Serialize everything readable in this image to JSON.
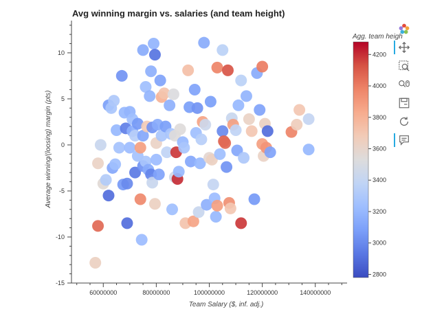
{
  "chart_data": {
    "type": "scatter",
    "title": "Avg winning margin vs. salaries (and team height)",
    "xlabel": "Team Salary ($, inf. adj.)",
    "ylabel": "Average winning/(loosing) margin (pts)",
    "xlim": [
      48000000,
      152000000
    ],
    "ylim": [
      -15,
      13.5
    ],
    "x_ticks": [
      60000000,
      80000000,
      100000000,
      120000000,
      140000000
    ],
    "x_tick_labels": [
      "60000000",
      "80000000",
      "100000000",
      "120000000",
      "140000000"
    ],
    "y_ticks": [
      -15,
      -10,
      -5,
      0,
      5,
      10
    ],
    "y_tick_labels": [
      "-15",
      "-10",
      "-5",
      "0",
      "5",
      "10"
    ],
    "colorbar": {
      "title": "Agg. team heigh",
      "range": [
        2780,
        4280
      ],
      "ticks": [
        2800,
        3000,
        3200,
        3400,
        3600,
        3800,
        4000,
        4200
      ],
      "tick_labels": [
        "2800",
        "3000",
        "3200",
        "3400",
        "3600",
        "3800",
        "4000",
        "4200"
      ],
      "palette": [
        "#3b4cc0",
        "#5977e3",
        "#7b9ff9",
        "#9ebeff",
        "#c0d4f5",
        "#dddcdc",
        "#f2cbb7",
        "#f7ac8e",
        "#ee8468",
        "#d65244",
        "#b40426"
      ]
    },
    "points": [
      {
        "x": 57000000,
        "y": -12.8,
        "c": 3640
      },
      {
        "x": 58000000,
        "y": -8.8,
        "c": 4060
      },
      {
        "x": 58000000,
        "y": -2.0,
        "c": 3620
      },
      {
        "x": 59000000,
        "y": 0.0,
        "c": 3420
      },
      {
        "x": 60000000,
        "y": -4.2,
        "c": 3560
      },
      {
        "x": 61000000,
        "y": -3.8,
        "c": 3320
      },
      {
        "x": 62000000,
        "y": -5.5,
        "c": 2900
      },
      {
        "x": 62000000,
        "y": 4.3,
        "c": 3080
      },
      {
        "x": 63000000,
        "y": 4.0,
        "c": 3280
      },
      {
        "x": 63500000,
        "y": -2.5,
        "c": 3120
      },
      {
        "x": 64000000,
        "y": 4.8,
        "c": 3300
      },
      {
        "x": 64500000,
        "y": -2.1,
        "c": 3240
      },
      {
        "x": 65000000,
        "y": 1.6,
        "c": 3200
      },
      {
        "x": 66000000,
        "y": -0.3,
        "c": 3260
      },
      {
        "x": 67000000,
        "y": 7.5,
        "c": 3040
      },
      {
        "x": 67500000,
        "y": -4.3,
        "c": 3060
      },
      {
        "x": 68000000,
        "y": 3.5,
        "c": 3200
      },
      {
        "x": 68500000,
        "y": 1.8,
        "c": 2960
      },
      {
        "x": 69000000,
        "y": -8.5,
        "c": 2900
      },
      {
        "x": 69000000,
        "y": -4.2,
        "c": 3000
      },
      {
        "x": 70000000,
        "y": 3.6,
        "c": 3180
      },
      {
        "x": 70000000,
        "y": -0.3,
        "c": 3220
      },
      {
        "x": 71000000,
        "y": 2.8,
        "c": 3240
      },
      {
        "x": 71000000,
        "y": 1.5,
        "c": 3160
      },
      {
        "x": 72000000,
        "y": -3.0,
        "c": 2940
      },
      {
        "x": 72000000,
        "y": 1.0,
        "c": 3340
      },
      {
        "x": 73000000,
        "y": 2.3,
        "c": 3060
      },
      {
        "x": 73000000,
        "y": -1.2,
        "c": 3260
      },
      {
        "x": 74000000,
        "y": -0.3,
        "c": 3880
      },
      {
        "x": 74000000,
        "y": -5.9,
        "c": 3960
      },
      {
        "x": 74500000,
        "y": -10.3,
        "c": 3220
      },
      {
        "x": 75000000,
        "y": 10.3,
        "c": 3140
      },
      {
        "x": 75000000,
        "y": 1.0,
        "c": 3120
      },
      {
        "x": 75000000,
        "y": -2.3,
        "c": 3040
      },
      {
        "x": 76000000,
        "y": 6.3,
        "c": 3240
      },
      {
        "x": 76000000,
        "y": -1.8,
        "c": 3280
      },
      {
        "x": 76500000,
        "y": 2.0,
        "c": 3680
      },
      {
        "x": 77000000,
        "y": -2.7,
        "c": 3140
      },
      {
        "x": 77500000,
        "y": 5.3,
        "c": 3180
      },
      {
        "x": 78000000,
        "y": -3.2,
        "c": 2980
      },
      {
        "x": 78000000,
        "y": 8.0,
        "c": 3160
      },
      {
        "x": 78500000,
        "y": 1.9,
        "c": 3040
      },
      {
        "x": 78500000,
        "y": -4.1,
        "c": 3420
      },
      {
        "x": 79000000,
        "y": 11.0,
        "c": 3180
      },
      {
        "x": 79500000,
        "y": 9.8,
        "c": 2920
      },
      {
        "x": 79500000,
        "y": -6.4,
        "c": 3640
      },
      {
        "x": 80000000,
        "y": 0.2,
        "c": 3620
      },
      {
        "x": 80000000,
        "y": -1.6,
        "c": 3220
      },
      {
        "x": 80500000,
        "y": 2.2,
        "c": 3140
      },
      {
        "x": 81000000,
        "y": -3.2,
        "c": 3100
      },
      {
        "x": 81500000,
        "y": 7.0,
        "c": 3100
      },
      {
        "x": 82000000,
        "y": 5.2,
        "c": 3800
      },
      {
        "x": 82000000,
        "y": 1.0,
        "c": 3280
      },
      {
        "x": 83000000,
        "y": 5.6,
        "c": 3720
      },
      {
        "x": 83500000,
        "y": 2.0,
        "c": 3080
      },
      {
        "x": 84000000,
        "y": -0.8,
        "c": 3380
      },
      {
        "x": 85000000,
        "y": 4.3,
        "c": 3160
      },
      {
        "x": 85500000,
        "y": 1.2,
        "c": 3280
      },
      {
        "x": 86000000,
        "y": -7.0,
        "c": 3240
      },
      {
        "x": 86500000,
        "y": 5.5,
        "c": 3520
      },
      {
        "x": 87000000,
        "y": 1.0,
        "c": 3540
      },
      {
        "x": 87000000,
        "y": -3.5,
        "c": 3460
      },
      {
        "x": 87500000,
        "y": -0.8,
        "c": 4180
      },
      {
        "x": 88000000,
        "y": -3.7,
        "c": 4200
      },
      {
        "x": 88500000,
        "y": -2.9,
        "c": 3200
      },
      {
        "x": 89000000,
        "y": 1.7,
        "c": 3540
      },
      {
        "x": 90000000,
        "y": 0.3,
        "c": 3200
      },
      {
        "x": 90500000,
        "y": -0.3,
        "c": 3280
      },
      {
        "x": 91000000,
        "y": -8.5,
        "c": 3720
      },
      {
        "x": 92000000,
        "y": 8.1,
        "c": 3740
      },
      {
        "x": 92500000,
        "y": 4.1,
        "c": 3080
      },
      {
        "x": 93000000,
        "y": -1.8,
        "c": 3120
      },
      {
        "x": 94000000,
        "y": -8.3,
        "c": 3860
      },
      {
        "x": 94500000,
        "y": 6.0,
        "c": 3100
      },
      {
        "x": 95000000,
        "y": 1.3,
        "c": 3240
      },
      {
        "x": 95500000,
        "y": 4.0,
        "c": 3040
      },
      {
        "x": 96000000,
        "y": -7.3,
        "c": 3420
      },
      {
        "x": 96500000,
        "y": -2.0,
        "c": 3200
      },
      {
        "x": 97000000,
        "y": 0.6,
        "c": 3340
      },
      {
        "x": 97500000,
        "y": 2.5,
        "c": 3860
      },
      {
        "x": 98000000,
        "y": 11.1,
        "c": 3140
      },
      {
        "x": 98500000,
        "y": 2.2,
        "c": 3440
      },
      {
        "x": 99000000,
        "y": -6.5,
        "c": 3160
      },
      {
        "x": 100000000,
        "y": -1.4,
        "c": 3580
      },
      {
        "x": 100500000,
        "y": 4.7,
        "c": 3080
      },
      {
        "x": 101000000,
        "y": -1.6,
        "c": 3640
      },
      {
        "x": 101500000,
        "y": -4.3,
        "c": 3400
      },
      {
        "x": 102000000,
        "y": -5.8,
        "c": 3220
      },
      {
        "x": 102500000,
        "y": -7.8,
        "c": 3200
      },
      {
        "x": 103000000,
        "y": 8.4,
        "c": 3980
      },
      {
        "x": 103000000,
        "y": -6.6,
        "c": 3880
      },
      {
        "x": 104000000,
        "y": -1.0,
        "c": 3240
      },
      {
        "x": 105000000,
        "y": 1.5,
        "c": 3000
      },
      {
        "x": 105000000,
        "y": 10.3,
        "c": 3360
      },
      {
        "x": 105500000,
        "y": 0.4,
        "c": 4080
      },
      {
        "x": 106000000,
        "y": 0.2,
        "c": 4060
      },
      {
        "x": 106500000,
        "y": -2.4,
        "c": 3040
      },
      {
        "x": 107000000,
        "y": 8.1,
        "c": 4120
      },
      {
        "x": 107500000,
        "y": -6.3,
        "c": 3940
      },
      {
        "x": 108000000,
        "y": -6.9,
        "c": 3700
      },
      {
        "x": 108500000,
        "y": 2.9,
        "c": 3420
      },
      {
        "x": 109000000,
        "y": 2.2,
        "c": 3880
      },
      {
        "x": 110000000,
        "y": 1.6,
        "c": 3380
      },
      {
        "x": 110500000,
        "y": -0.6,
        "c": 3120
      },
      {
        "x": 111000000,
        "y": 4.3,
        "c": 3200
      },
      {
        "x": 112000000,
        "y": 7.0,
        "c": 3360
      },
      {
        "x": 112000000,
        "y": -8.5,
        "c": 4180
      },
      {
        "x": 113000000,
        "y": -1.4,
        "c": 3300
      },
      {
        "x": 114000000,
        "y": 5.3,
        "c": 3180
      },
      {
        "x": 115000000,
        "y": 2.8,
        "c": 3620
      },
      {
        "x": 116000000,
        "y": 1.5,
        "c": 3700
      },
      {
        "x": 117000000,
        "y": -5.9,
        "c": 3060
      },
      {
        "x": 118000000,
        "y": 7.8,
        "c": 3140
      },
      {
        "x": 119000000,
        "y": 3.8,
        "c": 3100
      },
      {
        "x": 120000000,
        "y": 8.5,
        "c": 4000
      },
      {
        "x": 120000000,
        "y": 0.1,
        "c": 3880
      },
      {
        "x": 120500000,
        "y": -1.2,
        "c": 3620
      },
      {
        "x": 121000000,
        "y": 2.3,
        "c": 3640
      },
      {
        "x": 121500000,
        "y": -0.3,
        "c": 3920
      },
      {
        "x": 122000000,
        "y": 1.5,
        "c": 2900
      },
      {
        "x": 123000000,
        "y": -0.8,
        "c": 3100
      },
      {
        "x": 131000000,
        "y": 1.4,
        "c": 3980
      },
      {
        "x": 133000000,
        "y": 2.2,
        "c": 3660
      },
      {
        "x": 134000000,
        "y": 3.8,
        "c": 3700
      },
      {
        "x": 137500000,
        "y": 2.8,
        "c": 3400
      },
      {
        "x": 137500000,
        "y": -0.5,
        "c": 3200
      }
    ]
  },
  "toolbar": {
    "items": [
      {
        "name": "bokeh-logo-icon"
      },
      {
        "name": "pan-tool-icon"
      },
      {
        "name": "box-zoom-tool-icon"
      },
      {
        "name": "wheel-zoom-tool-icon"
      },
      {
        "name": "save-tool-icon"
      },
      {
        "name": "reset-tool-icon"
      },
      {
        "name": "hover-tool-icon"
      }
    ]
  }
}
